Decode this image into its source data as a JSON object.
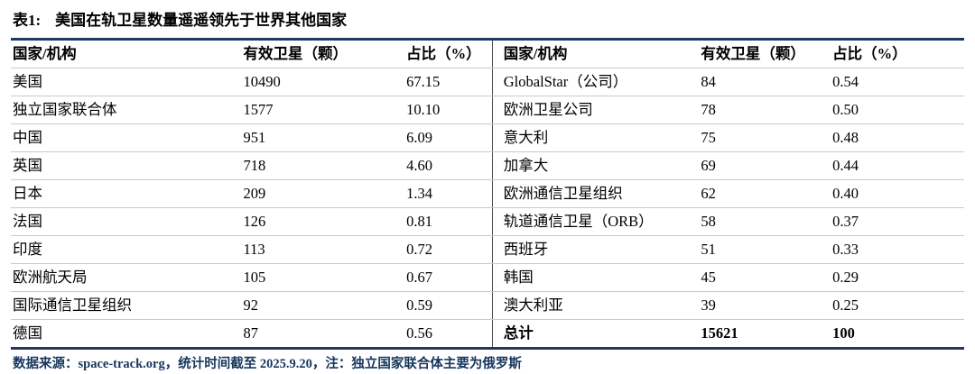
{
  "title": {
    "label": "表1:",
    "text": "美国在轨卫星数量遥遥领先于世界其他国家"
  },
  "table": {
    "headers": {
      "country": "国家/机构",
      "satellites": "有效卫星（颗）",
      "share": "占比（%）"
    },
    "left_rows": [
      {
        "name": "美国",
        "satellites": "10490",
        "share": "67.15"
      },
      {
        "name": "独立国家联合体",
        "satellites": "1577",
        "share": "10.10"
      },
      {
        "name": "中国",
        "satellites": "951",
        "share": "6.09"
      },
      {
        "name": "英国",
        "satellites": "718",
        "share": "4.60"
      },
      {
        "name": "日本",
        "satellites": "209",
        "share": "1.34"
      },
      {
        "name": "法国",
        "satellites": "126",
        "share": "0.81"
      },
      {
        "name": "印度",
        "satellites": "113",
        "share": "0.72"
      },
      {
        "name": "欧洲航天局",
        "satellites": "105",
        "share": "0.67"
      },
      {
        "name": "国际通信卫星组织",
        "satellites": "92",
        "share": "0.59"
      },
      {
        "name": "德国",
        "satellites": "87",
        "share": "0.56"
      }
    ],
    "right_rows": [
      {
        "name": "GlobalStar（公司）",
        "satellites": "84",
        "share": "0.54"
      },
      {
        "name": "欧洲卫星公司",
        "satellites": "78",
        "share": "0.50"
      },
      {
        "name": "意大利",
        "satellites": "75",
        "share": "0.48"
      },
      {
        "name": "加拿大",
        "satellites": "69",
        "share": "0.44"
      },
      {
        "name": "欧洲通信卫星组织",
        "satellites": "62",
        "share": "0.40"
      },
      {
        "name": "轨道通信卫星（ORB）",
        "satellites": "58",
        "share": "0.37"
      },
      {
        "name": "西班牙",
        "satellites": "51",
        "share": "0.33"
      },
      {
        "name": "韩国",
        "satellites": "45",
        "share": "0.29"
      },
      {
        "name": "澳大利亚",
        "satellites": "39",
        "share": "0.25"
      },
      {
        "name": "总计",
        "satellites": "15621",
        "share": "100",
        "bold": true
      }
    ]
  },
  "footer": "数据来源：space-track.org，统计时间截至 2025.9.20，注：独立国家联合体主要为俄罗斯",
  "colors": {
    "accent": "#1f3864",
    "footer_text": "#17365d",
    "row_border": "#c9c9c9",
    "divider": "#4d4d4d"
  }
}
